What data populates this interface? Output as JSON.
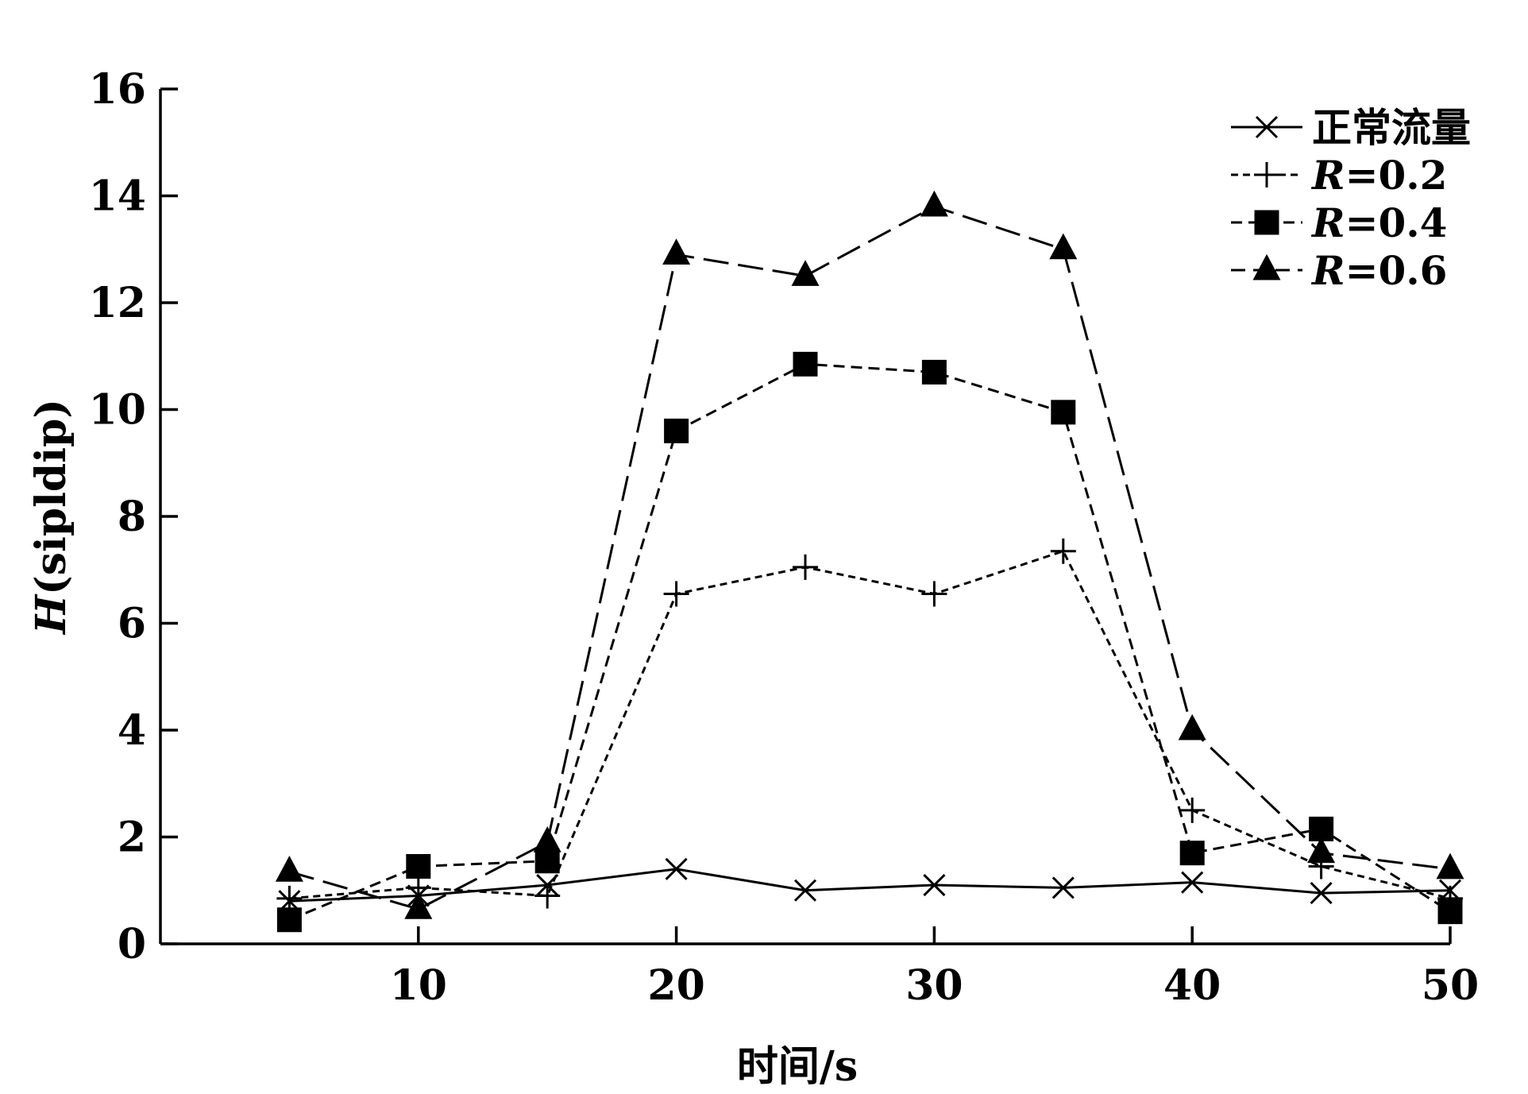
{
  "chart_data": {
    "type": "line",
    "xlabel": "时间/s",
    "ylabel_italic": "H",
    "ylabel_rest": "(sipldip)",
    "xlim": [
      0,
      50
    ],
    "ylim": [
      0,
      16
    ],
    "xticks": [
      10,
      20,
      30,
      40,
      50
    ],
    "yticks": [
      0,
      2,
      4,
      6,
      8,
      10,
      12,
      14,
      16
    ],
    "legend_position": "top-right",
    "grid": false,
    "series": [
      {
        "name": "正常流量",
        "marker": "x",
        "dash": "solid",
        "x": [
          5,
          10,
          15,
          20,
          25,
          30,
          35,
          40,
          45,
          50
        ],
        "y": [
          0.8,
          0.9,
          1.1,
          1.4,
          1.0,
          1.1,
          1.05,
          1.15,
          0.95,
          1.0
        ]
      },
      {
        "name_italic": "R",
        "name_rest": "=0.2",
        "marker": "plus",
        "dash": "dotted",
        "x": [
          5,
          10,
          15,
          20,
          25,
          30,
          35,
          40,
          45,
          50
        ],
        "y": [
          0.85,
          1.05,
          0.9,
          6.55,
          7.05,
          6.55,
          7.35,
          2.5,
          1.45,
          0.85
        ]
      },
      {
        "name_italic": "R",
        "name_rest": "=0.4",
        "marker": "square",
        "dash": "short-dash",
        "x": [
          5,
          10,
          15,
          20,
          25,
          30,
          35,
          40,
          45,
          50
        ],
        "y": [
          0.45,
          1.45,
          1.55,
          9.6,
          10.85,
          10.7,
          9.95,
          1.7,
          2.15,
          0.6
        ]
      },
      {
        "name_italic": "R",
        "name_rest": "=0.6",
        "marker": "triangle",
        "dash": "long-dash",
        "x": [
          5,
          10,
          15,
          20,
          25,
          30,
          35,
          40,
          45,
          50
        ],
        "y": [
          1.35,
          0.65,
          1.9,
          12.9,
          12.5,
          13.8,
          13.0,
          4.0,
          1.7,
          1.4
        ]
      }
    ]
  }
}
